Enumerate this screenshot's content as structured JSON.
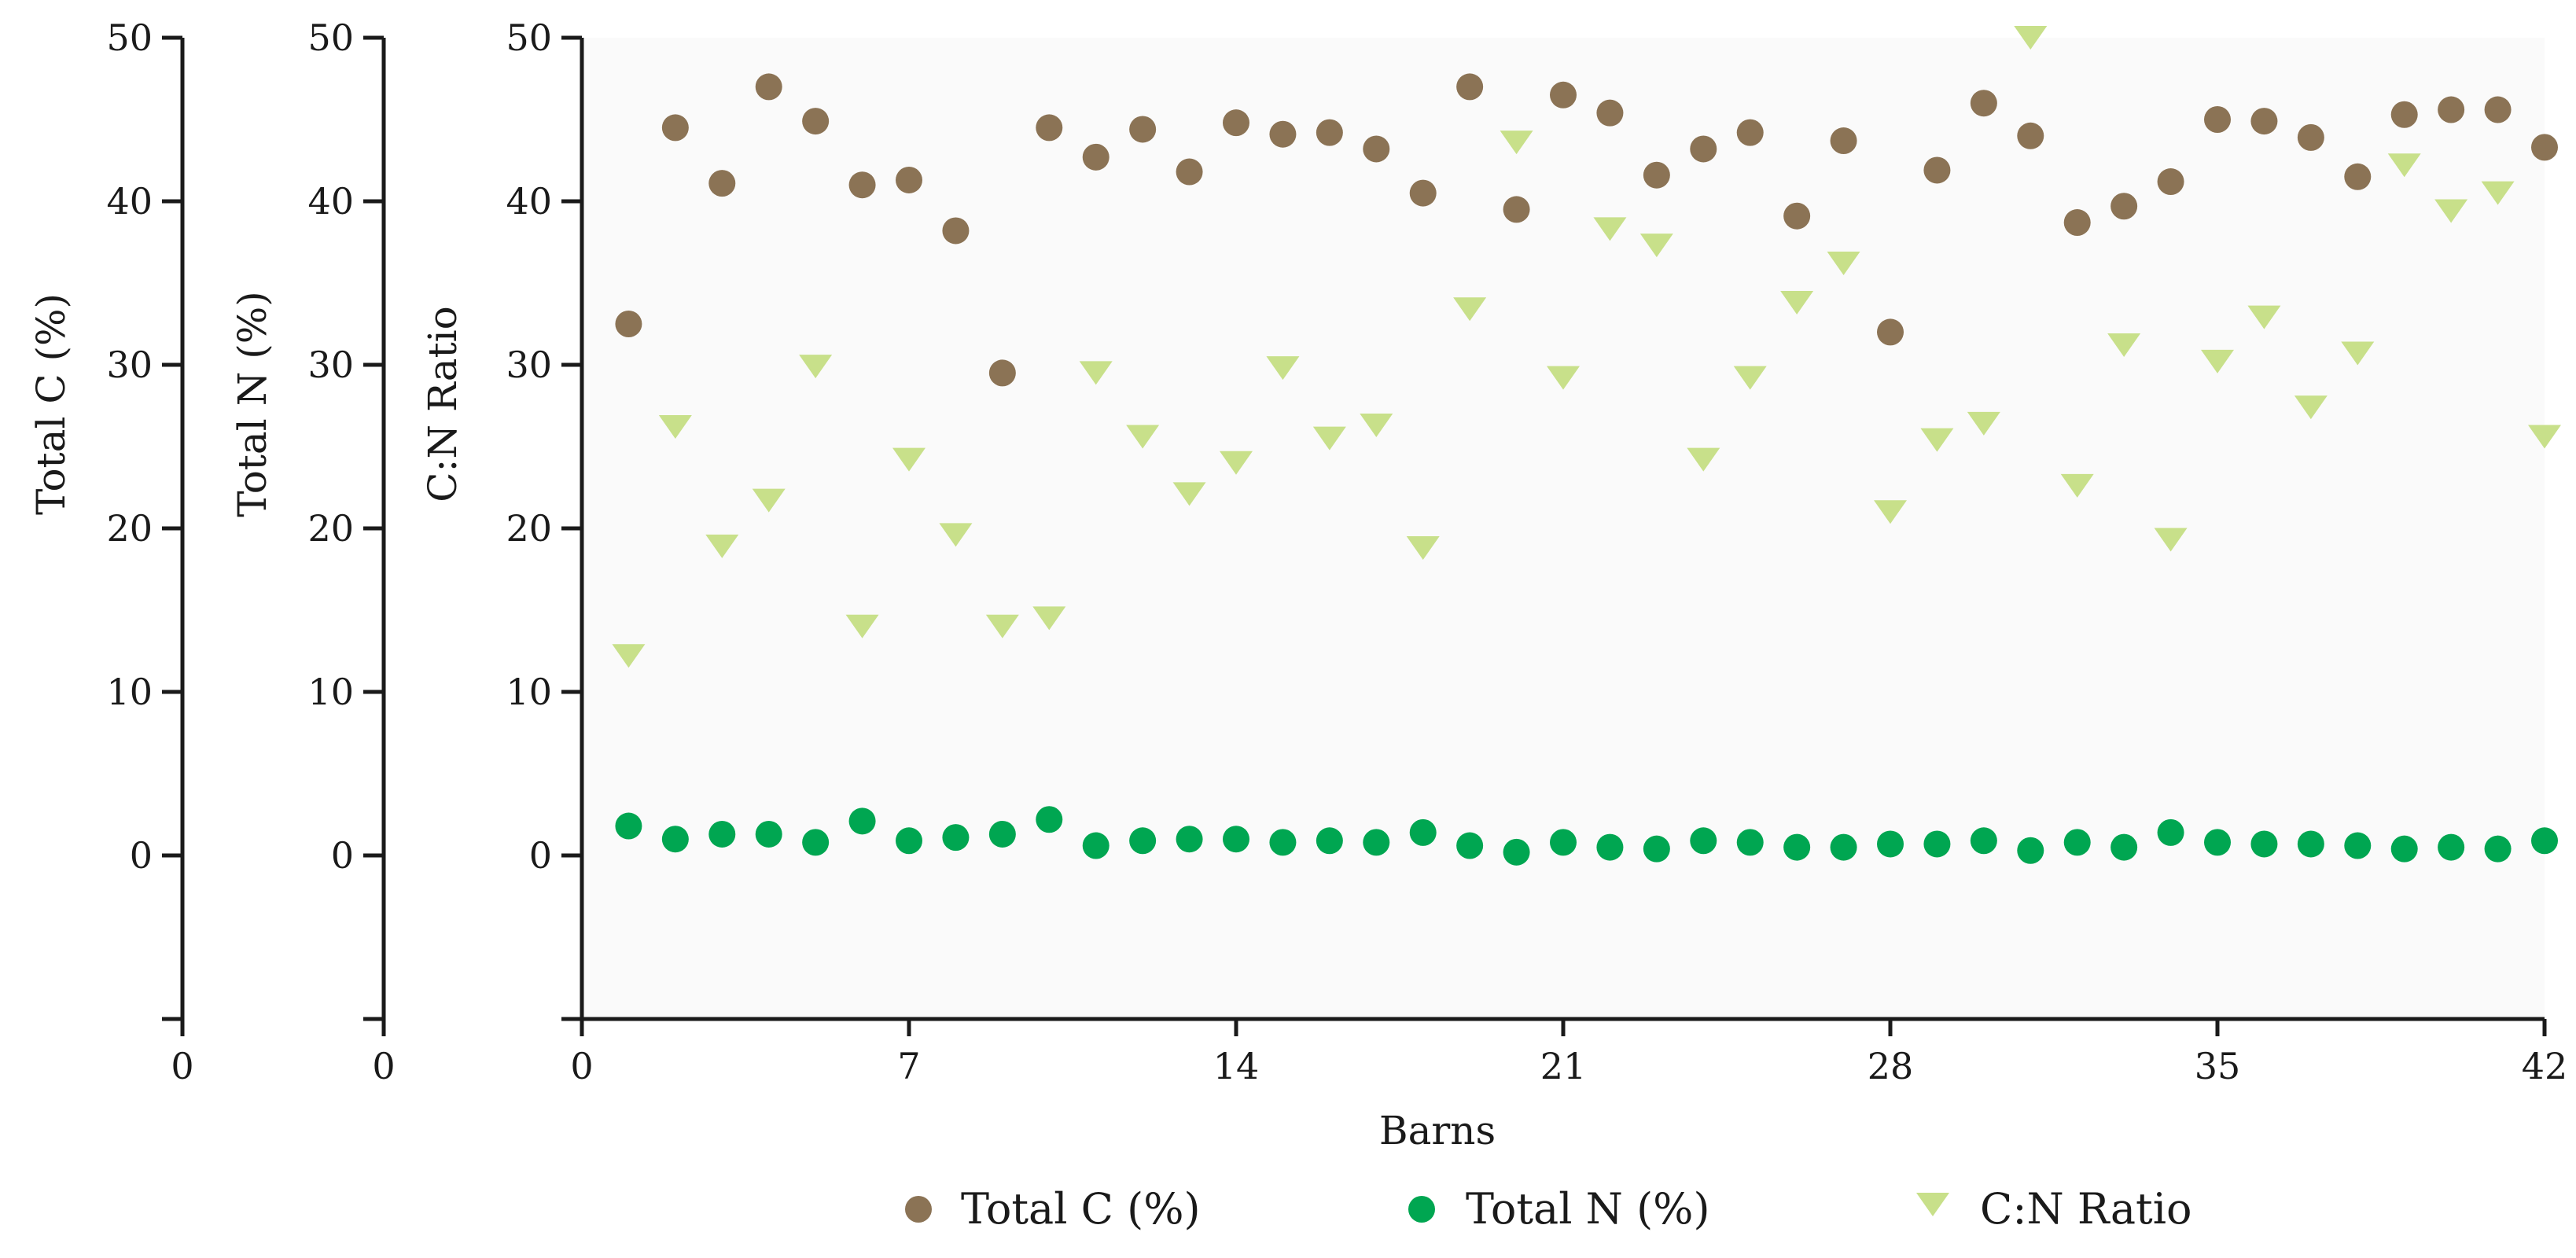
{
  "colors": {
    "total_c": "#8B7355",
    "total_n": "#00A651",
    "cn_ratio": "#C8E08A",
    "plot_bg": "#fafafa"
  },
  "chart_data": {
    "type": "scatter",
    "xlabel": "Barns",
    "x_ticks": [
      "0",
      "7",
      "14",
      "21",
      "28",
      "35",
      "42"
    ],
    "xlim": [
      0,
      42
    ],
    "ylim": [
      -10,
      50
    ],
    "y_ticks": [
      "0",
      "10",
      "20",
      "30",
      "40",
      "50"
    ],
    "axes": [
      {
        "key": "total_c",
        "ylabel": "Total C (%)",
        "bottom_label": "0"
      },
      {
        "key": "total_n",
        "ylabel": "Total N (%)",
        "bottom_label": "0"
      },
      {
        "key": "cn_ratio",
        "ylabel": "C:N Ratio",
        "bottom_label": ""
      }
    ],
    "x": [
      1,
      2,
      3,
      4,
      5,
      6,
      7,
      8,
      9,
      10,
      11,
      12,
      13,
      14,
      15,
      16,
      17,
      18,
      19,
      20,
      21,
      22,
      23,
      24,
      25,
      26,
      27,
      28,
      29,
      30,
      31,
      32,
      33,
      34,
      35,
      36,
      37,
      38,
      39,
      40,
      41,
      42
    ],
    "series": [
      {
        "key": "total_c",
        "name": "Total C (%)",
        "marker": "circle",
        "values": [
          32.5,
          44.5,
          41.1,
          47.0,
          44.9,
          41.0,
          41.3,
          38.2,
          29.5,
          44.5,
          42.7,
          44.4,
          41.8,
          44.8,
          44.1,
          44.2,
          43.2,
          40.5,
          47.0,
          39.5,
          46.5,
          45.4,
          41.6,
          43.2,
          44.2,
          39.1,
          43.7,
          32.0,
          41.9,
          46.0,
          44.0,
          38.7,
          39.7,
          41.2,
          45.0,
          44.9,
          43.9,
          41.5,
          45.3,
          45.6,
          45.6,
          43.3
        ]
      },
      {
        "key": "total_n",
        "name": "Total N (%)",
        "marker": "circle",
        "values": [
          1.8,
          1.0,
          1.3,
          1.3,
          0.8,
          2.1,
          0.9,
          1.1,
          1.3,
          2.2,
          0.6,
          0.9,
          1.0,
          1.0,
          0.8,
          0.9,
          0.8,
          1.4,
          0.6,
          0.2,
          0.8,
          0.5,
          0.4,
          0.9,
          0.8,
          0.5,
          0.5,
          0.7,
          0.7,
          0.9,
          0.3,
          0.8,
          0.5,
          1.4,
          0.8,
          0.7,
          0.7,
          0.6,
          0.4,
          0.5,
          0.4,
          0.9
        ]
      },
      {
        "key": "cn_ratio",
        "name": "C:N Ratio",
        "marker": "triangle-down",
        "values": [
          12.2,
          26.2,
          18.9,
          21.7,
          29.9,
          14.0,
          24.2,
          19.6,
          14.0,
          14.5,
          29.5,
          25.6,
          22.1,
          24.0,
          29.8,
          25.5,
          26.3,
          18.8,
          33.4,
          43.6,
          29.2,
          38.3,
          37.3,
          24.2,
          29.2,
          33.8,
          36.2,
          21.0,
          25.4,
          26.4,
          50.0,
          22.6,
          31.2,
          19.3,
          30.2,
          32.9,
          27.4,
          30.7,
          42.2,
          39.4,
          40.5,
          25.6
        ]
      }
    ],
    "legend": [
      {
        "key": "total_c",
        "label": "Total C (%)",
        "marker": "circle"
      },
      {
        "key": "total_n",
        "label": "Total N (%)",
        "marker": "circle"
      },
      {
        "key": "cn_ratio",
        "label": "C:N Ratio",
        "marker": "triangle-down"
      }
    ],
    "legend_position": "bottom-center"
  }
}
